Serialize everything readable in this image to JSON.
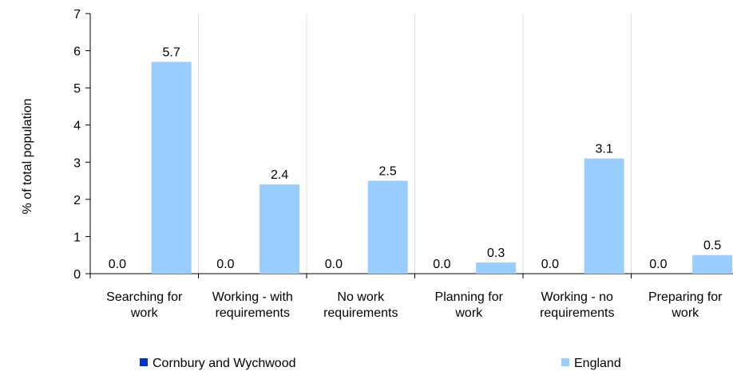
{
  "chart_data": {
    "type": "bar",
    "ylabel": "% of total population",
    "ylim": [
      0,
      7
    ],
    "yticks": [
      "0",
      "1",
      "2",
      "3",
      "4",
      "5",
      "6",
      "7"
    ],
    "grid": "vertical",
    "legend_position": "bottom",
    "categories": [
      [
        "Searching for",
        "work"
      ],
      [
        "Working - with",
        "requirements"
      ],
      [
        "No work",
        "requirements"
      ],
      [
        "Planning for",
        "work"
      ],
      [
        "Working - no",
        "requirements"
      ],
      [
        "Preparing for",
        "work"
      ]
    ],
    "series": [
      {
        "name": "Cornbury and Wychwood",
        "color": "#0033cc",
        "values": [
          0.0,
          0.0,
          0.0,
          0.0,
          0.0,
          0.0
        ],
        "labels": [
          "0.0",
          "0.0",
          "0.0",
          "0.0",
          "0.0",
          "0.0"
        ]
      },
      {
        "name": "England",
        "color": "#99ccff",
        "values": [
          5.7,
          2.4,
          2.5,
          0.3,
          3.1,
          0.5
        ],
        "labels": [
          "5.7",
          "2.4",
          "2.5",
          "0.3",
          "3.1",
          "0.5"
        ]
      }
    ]
  }
}
